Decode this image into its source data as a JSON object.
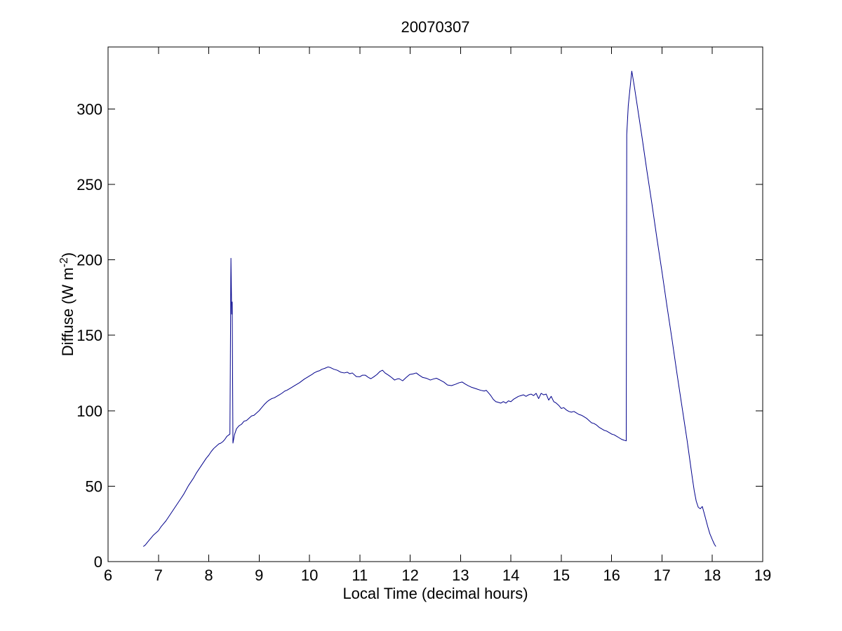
{
  "figure": {
    "title": "20070307",
    "xlabel": "Local Time (decimal hours)",
    "ylabel": {
      "prefix": "Diffuse (W m",
      "superscript": "-2",
      "suffix": ")"
    },
    "background": "#FFFFFF",
    "axis_color": "#000000"
  },
  "chart_data": {
    "type": "line",
    "title": "20070307",
    "xlabel": "Local Time (decimal hours)",
    "ylabel": "Diffuse (W m^-2)",
    "xlim": [
      6,
      19
    ],
    "ylim": [
      0,
      341
    ],
    "xticks": [
      6,
      7,
      8,
      9,
      10,
      11,
      12,
      13,
      14,
      15,
      16,
      17,
      18,
      19
    ],
    "yticks": [
      0,
      50,
      100,
      150,
      200,
      250,
      300
    ],
    "grid": false,
    "legend": null,
    "box": true,
    "tick_direction": "in",
    "line_color": "#00008B",
    "line_width": 1,
    "series": [
      {
        "name": "diffuse",
        "points": [
          [
            6.7,
            10
          ],
          [
            6.74,
            11
          ],
          [
            6.8,
            13.5
          ],
          [
            6.85,
            15.5
          ],
          [
            6.9,
            17.5
          ],
          [
            6.95,
            19
          ],
          [
            7.0,
            20.5
          ],
          [
            7.05,
            23
          ],
          [
            7.1,
            25
          ],
          [
            7.15,
            27
          ],
          [
            7.2,
            29.5
          ],
          [
            7.25,
            32
          ],
          [
            7.3,
            34.5
          ],
          [
            7.35,
            37
          ],
          [
            7.4,
            39.5
          ],
          [
            7.45,
            42
          ],
          [
            7.5,
            44.5
          ],
          [
            7.55,
            47.5
          ],
          [
            7.6,
            50.5
          ],
          [
            7.65,
            53
          ],
          [
            7.7,
            55.5
          ],
          [
            7.75,
            58.5
          ],
          [
            7.8,
            61
          ],
          [
            7.85,
            63.5
          ],
          [
            7.9,
            66
          ],
          [
            7.95,
            68.5
          ],
          [
            8.0,
            70.5
          ],
          [
            8.05,
            73
          ],
          [
            8.1,
            75
          ],
          [
            8.15,
            76.5
          ],
          [
            8.2,
            78
          ],
          [
            8.24,
            78.5
          ],
          [
            8.28,
            79.5
          ],
          [
            8.32,
            81
          ],
          [
            8.36,
            83
          ],
          [
            8.4,
            84
          ],
          [
            8.42,
            84.5
          ],
          [
            8.44,
            201
          ],
          [
            8.455,
            164
          ],
          [
            8.465,
            172
          ],
          [
            8.48,
            78.5
          ],
          [
            8.51,
            84
          ],
          [
            8.55,
            88
          ],
          [
            8.6,
            90
          ],
          [
            8.65,
            91
          ],
          [
            8.7,
            93
          ],
          [
            8.75,
            93.5
          ],
          [
            8.8,
            95
          ],
          [
            8.85,
            96.5
          ],
          [
            8.9,
            97
          ],
          [
            8.95,
            98.5
          ],
          [
            9.0,
            100
          ],
          [
            9.05,
            102
          ],
          [
            9.1,
            104
          ],
          [
            9.16,
            106
          ],
          [
            9.2,
            107
          ],
          [
            9.25,
            108
          ],
          [
            9.3,
            108.5
          ],
          [
            9.35,
            109.5
          ],
          [
            9.4,
            110.5
          ],
          [
            9.45,
            111.5
          ],
          [
            9.51,
            113
          ],
          [
            9.55,
            113.5
          ],
          [
            9.6,
            114.5
          ],
          [
            9.65,
            115.5
          ],
          [
            9.7,
            116.5
          ],
          [
            9.75,
            117.5
          ],
          [
            9.8,
            118.5
          ],
          [
            9.86,
            120
          ],
          [
            9.9,
            121
          ],
          [
            9.95,
            122
          ],
          [
            10.0,
            123
          ],
          [
            10.05,
            124
          ],
          [
            10.09,
            125
          ],
          [
            10.15,
            126
          ],
          [
            10.2,
            126.5
          ],
          [
            10.25,
            127.5
          ],
          [
            10.3,
            128
          ],
          [
            10.37,
            129
          ],
          [
            10.42,
            128.5
          ],
          [
            10.48,
            127.5
          ],
          [
            10.55,
            126.8
          ],
          [
            10.62,
            125.5
          ],
          [
            10.69,
            125
          ],
          [
            10.75,
            125.5
          ],
          [
            10.8,
            124.5
          ],
          [
            10.85,
            125
          ],
          [
            10.93,
            122.6
          ],
          [
            11.0,
            122.5
          ],
          [
            11.05,
            123.5
          ],
          [
            11.11,
            123.5
          ],
          [
            11.17,
            122
          ],
          [
            11.22,
            121.2
          ],
          [
            11.28,
            122.5
          ],
          [
            11.34,
            124
          ],
          [
            11.4,
            126
          ],
          [
            11.45,
            126.8
          ],
          [
            11.5,
            125
          ],
          [
            11.57,
            123.5
          ],
          [
            11.63,
            122
          ],
          [
            11.69,
            120.3
          ],
          [
            11.74,
            121
          ],
          [
            11.78,
            121.2
          ],
          [
            11.85,
            119.8
          ],
          [
            11.92,
            122
          ],
          [
            11.99,
            124
          ],
          [
            12.06,
            124.4
          ],
          [
            12.12,
            125
          ],
          [
            12.18,
            123.5
          ],
          [
            12.25,
            122
          ],
          [
            12.32,
            121.5
          ],
          [
            12.4,
            120.3
          ],
          [
            12.46,
            121
          ],
          [
            12.52,
            121.5
          ],
          [
            12.58,
            120.5
          ],
          [
            12.67,
            118.9
          ],
          [
            12.74,
            117
          ],
          [
            12.82,
            116.6
          ],
          [
            12.9,
            117.5
          ],
          [
            12.97,
            118.5
          ],
          [
            13.03,
            119
          ],
          [
            13.1,
            117.5
          ],
          [
            13.15,
            116.6
          ],
          [
            13.22,
            115.5
          ],
          [
            13.33,
            114.3
          ],
          [
            13.4,
            113.5
          ],
          [
            13.47,
            113
          ],
          [
            13.51,
            113.5
          ],
          [
            13.55,
            112
          ],
          [
            13.6,
            110
          ],
          [
            13.65,
            107.5
          ],
          [
            13.7,
            106
          ],
          [
            13.75,
            105.5
          ],
          [
            13.8,
            105
          ],
          [
            13.85,
            106
          ],
          [
            13.9,
            105
          ],
          [
            13.95,
            106.5
          ],
          [
            14.0,
            106
          ],
          [
            14.05,
            107.5
          ],
          [
            14.1,
            108.5
          ],
          [
            14.15,
            109.5
          ],
          [
            14.2,
            110
          ],
          [
            14.25,
            110.5
          ],
          [
            14.3,
            109.5
          ],
          [
            14.35,
            110.5
          ],
          [
            14.4,
            111
          ],
          [
            14.45,
            110
          ],
          [
            14.5,
            111.5
          ],
          [
            14.55,
            108
          ],
          [
            14.6,
            111.5
          ],
          [
            14.65,
            110.5
          ],
          [
            14.7,
            111
          ],
          [
            14.75,
            107
          ],
          [
            14.8,
            109.5
          ],
          [
            14.85,
            106
          ],
          [
            14.9,
            105
          ],
          [
            14.95,
            103.5
          ],
          [
            15.0,
            101.5
          ],
          [
            15.05,
            102
          ],
          [
            15.1,
            100.5
          ],
          [
            15.15,
            99.5
          ],
          [
            15.2,
            99
          ],
          [
            15.25,
            99.5
          ],
          [
            15.3,
            98.5
          ],
          [
            15.35,
            97.5
          ],
          [
            15.4,
            97
          ],
          [
            15.45,
            96
          ],
          [
            15.5,
            95
          ],
          [
            15.55,
            93.5
          ],
          [
            15.6,
            92
          ],
          [
            15.65,
            91.5
          ],
          [
            15.7,
            90.5
          ],
          [
            15.75,
            89
          ],
          [
            15.8,
            88
          ],
          [
            15.85,
            87
          ],
          [
            15.9,
            86.5
          ],
          [
            15.95,
            85.5
          ],
          [
            16.0,
            84.5
          ],
          [
            16.05,
            84
          ],
          [
            16.1,
            83
          ],
          [
            16.15,
            82
          ],
          [
            16.2,
            81
          ],
          [
            16.24,
            80.5
          ],
          [
            16.29,
            80
          ],
          [
            16.3,
            283
          ],
          [
            16.33,
            302
          ],
          [
            16.36,
            312
          ],
          [
            16.4,
            325
          ],
          [
            16.45,
            315
          ],
          [
            16.5,
            304
          ],
          [
            16.6,
            282
          ],
          [
            16.7,
            259
          ],
          [
            16.8,
            237
          ],
          [
            16.9,
            214
          ],
          [
            17.0,
            192
          ],
          [
            17.1,
            169
          ],
          [
            17.2,
            147
          ],
          [
            17.3,
            124
          ],
          [
            17.4,
            102
          ],
          [
            17.45,
            91
          ],
          [
            17.5,
            80
          ],
          [
            17.55,
            68
          ],
          [
            17.6,
            56
          ],
          [
            17.64,
            47
          ],
          [
            17.68,
            40
          ],
          [
            17.72,
            36
          ],
          [
            17.76,
            35
          ],
          [
            17.8,
            36.5
          ],
          [
            17.83,
            33
          ],
          [
            17.87,
            28
          ],
          [
            17.91,
            23
          ],
          [
            17.95,
            18.5
          ],
          [
            18.0,
            14.5
          ],
          [
            18.04,
            11.5
          ],
          [
            18.07,
            10
          ]
        ]
      }
    ]
  }
}
